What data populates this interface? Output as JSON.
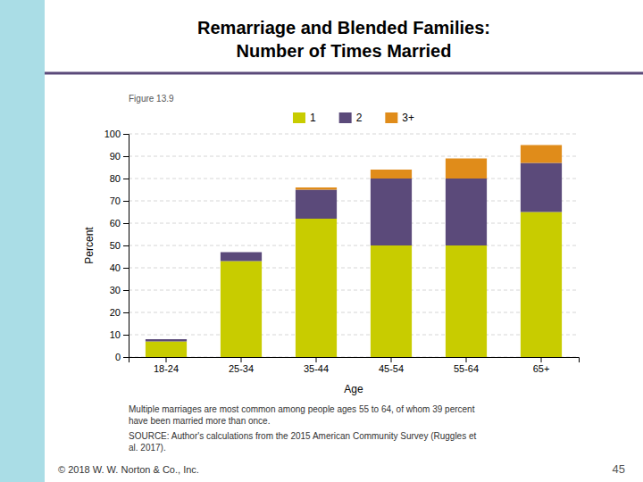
{
  "chart_data": {
    "type": "bar",
    "stacked": true,
    "title": "Remarriage and Blended Families:",
    "subtitle": "Number of Times Married",
    "xlabel": "Age",
    "ylabel": "Percent",
    "categories": [
      "18-24",
      "25-34",
      "35-44",
      "45-54",
      "55-64",
      "65+"
    ],
    "series": [
      {
        "name": "1",
        "color": "#c8cc00",
        "values": [
          7,
          43,
          62,
          50,
          50,
          65
        ]
      },
      {
        "name": "2",
        "color": "#5b4a7a",
        "values": [
          1,
          4,
          13,
          30,
          30,
          22
        ]
      },
      {
        "name": "3+",
        "color": "#e08c1a",
        "values": [
          0,
          0,
          1,
          4,
          9,
          8
        ]
      }
    ],
    "ylim": [
      0,
      100
    ],
    "yticks": [
      0,
      10,
      20,
      30,
      40,
      50,
      60,
      70,
      80,
      90,
      100
    ],
    "grid": true,
    "legend": "top",
    "annotations": [
      "Figure 13.9",
      "Multiple marriages are most common among people ages 55 to 64, of whom 39 percent\nhave been married more than once.",
      "SOURCE: Author's calculations from the 2015 American Community Survey (Ruggles et\nal. 2017).",
      "© 2018 W. W. Norton & Co., Inc.",
      "45"
    ]
  }
}
